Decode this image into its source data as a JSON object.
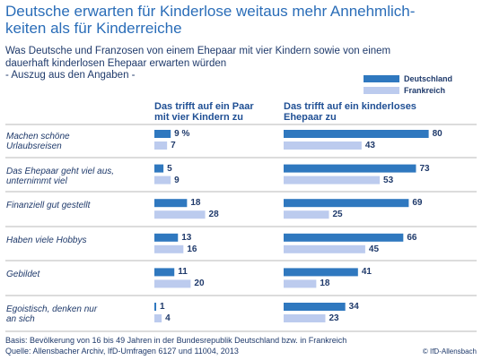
{
  "title": "Deutsche erwarten für Kinderlose weitaus mehr Annehmlich-\nkeiten als für Kinderreiche",
  "subtitle": "Was Deutsche und Franzosen von einem Ehepaar mit vier Kindern sowie von einem\ndauerhaft kinderlosen Ehepaar erwarten würden\n- Auszug aus den Angaben -",
  "notes": [
    "Basis: Bevölkerung von 16 bis 49 Jahren in der Bundesrepublik Deutschland bzw. in Frankreich",
    "Quelle: Allensbacher Archiv, IfD-Umfragen 6127 und 11004, 2013"
  ],
  "copyright": "© IfD-Allensbach",
  "chart_data": [
    {
      "type": "bar",
      "orientation": "horizontal",
      "title": "Das trifft auf ein Paar\nmit vier Kindern zu",
      "categories": [
        "Machen schöne\nUrlaubsreisen",
        "Das Ehepaar geht viel aus,\nunternimmt viel",
        "Finanziell gut gestellt",
        "Haben viele Hobbys",
        "Gebildet",
        "Egoistisch, denken nur\nan sich"
      ],
      "xlim": [
        0,
        100
      ],
      "series": [
        {
          "name": "Deutschland",
          "color": "#2f78bf",
          "values": [
            9,
            5,
            18,
            13,
            11,
            1
          ],
          "value_labels": [
            "9 %",
            "5",
            "18",
            "13",
            "11",
            "1"
          ]
        },
        {
          "name": "Frankreich",
          "color": "#bccbee",
          "values": [
            7,
            9,
            28,
            16,
            20,
            4
          ]
        }
      ]
    },
    {
      "type": "bar",
      "orientation": "horizontal",
      "title": "Das trifft auf ein kinderloses\nEhepaar zu",
      "xlim": [
        0,
        100
      ],
      "series": [
        {
          "color": "#2f78bf",
          "values": [
            80,
            73,
            69,
            66,
            41,
            34
          ]
        },
        {
          "color": "#bccbee",
          "values": [
            43,
            53,
            25,
            45,
            18,
            23
          ]
        }
      ]
    }
  ]
}
